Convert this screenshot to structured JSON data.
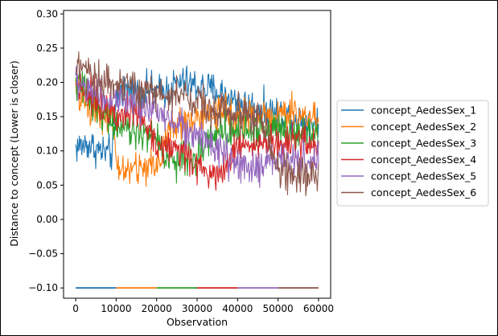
{
  "chart_data": {
    "type": "line",
    "title": "",
    "xlabel": "Observation",
    "ylabel": "Distance to concept (Lower is closer)",
    "xlim": [
      -3000,
      63000
    ],
    "ylim": [
      -0.115,
      0.305
    ],
    "xticks": [
      0,
      10000,
      20000,
      30000,
      40000,
      50000,
      60000
    ],
    "xtick_labels": [
      "0",
      "10000",
      "20000",
      "30000",
      "40000",
      "50000",
      "60000"
    ],
    "yticks": [
      0.3,
      0.25,
      0.2,
      0.15,
      0.1,
      0.05,
      0.0,
      -0.05,
      -0.1
    ],
    "ytick_labels": [
      "0.30",
      "0.25",
      "0.20",
      "0.15",
      "0.10",
      "0.05",
      "0.00",
      "−0.05",
      "−0.10"
    ],
    "grid": false,
    "legend_position": "right, outside plot",
    "baseline": {
      "y": -0.1,
      "segments": [
        {
          "series": 0,
          "x": [
            0,
            10000
          ]
        },
        {
          "series": 1,
          "x": [
            10000,
            20000
          ]
        },
        {
          "series": 2,
          "x": [
            20000,
            30000
          ]
        },
        {
          "series": 3,
          "x": [
            30000,
            40000
          ]
        },
        {
          "series": 4,
          "x": [
            40000,
            50000
          ]
        },
        {
          "series": 5,
          "x": [
            50000,
            60000
          ]
        }
      ]
    },
    "series": [
      {
        "name": "concept_AedesSex_1",
        "color": "#1f77b4",
        "x": [
          0,
          3000,
          6000,
          9000,
          10000,
          12000,
          15000,
          18000,
          20000,
          23000,
          26000,
          30000,
          33000,
          36000,
          40000,
          43000,
          46000,
          50000,
          53000,
          56000,
          60000
        ],
        "y": [
          0.105,
          0.11,
          0.1,
          0.095,
          0.18,
          0.19,
          0.185,
          0.19,
          0.185,
          0.19,
          0.2,
          0.195,
          0.19,
          0.185,
          0.17,
          0.165,
          0.16,
          0.155,
          0.15,
          0.145,
          0.14
        ],
        "noise": 0.022
      },
      {
        "name": "concept_AedesSex_2",
        "color": "#ff7f0e",
        "x": [
          0,
          3000,
          6000,
          9000,
          10000,
          13000,
          16000,
          20000,
          23000,
          26000,
          30000,
          33000,
          36000,
          40000,
          43000,
          46000,
          50000,
          53000,
          56000,
          60000
        ],
        "y": [
          0.185,
          0.165,
          0.155,
          0.15,
          0.075,
          0.072,
          0.075,
          0.08,
          0.13,
          0.14,
          0.15,
          0.15,
          0.155,
          0.155,
          0.15,
          0.15,
          0.15,
          0.155,
          0.15,
          0.15
        ],
        "noise": 0.022
      },
      {
        "name": "concept_AedesSex_3",
        "color": "#2ca02c",
        "x": [
          0,
          3000,
          6000,
          10000,
          13000,
          16000,
          20000,
          23000,
          26000,
          30000,
          33000,
          36000,
          40000,
          43000,
          46000,
          50000,
          53000,
          56000,
          60000
        ],
        "y": [
          0.2,
          0.185,
          0.16,
          0.135,
          0.13,
          0.125,
          0.12,
          0.085,
          0.085,
          0.09,
          0.12,
          0.13,
          0.13,
          0.13,
          0.13,
          0.135,
          0.13,
          0.13,
          0.13
        ],
        "noise": 0.022
      },
      {
        "name": "concept_AedesSex_4",
        "color": "#d62728",
        "x": [
          0,
          3000,
          6000,
          10000,
          13000,
          16000,
          20000,
          23000,
          26000,
          30000,
          33000,
          36000,
          40000,
          43000,
          46000,
          50000,
          53000,
          56000,
          60000
        ],
        "y": [
          0.2,
          0.185,
          0.17,
          0.16,
          0.155,
          0.15,
          0.11,
          0.105,
          0.105,
          0.075,
          0.07,
          0.07,
          0.11,
          0.11,
          0.11,
          0.11,
          0.11,
          0.11,
          0.11
        ],
        "noise": 0.022
      },
      {
        "name": "concept_AedesSex_5",
        "color": "#9467bd",
        "x": [
          0,
          3000,
          6000,
          10000,
          13000,
          16000,
          20000,
          23000,
          26000,
          30000,
          33000,
          36000,
          40000,
          43000,
          46000,
          50000,
          53000,
          56000,
          60000
        ],
        "y": [
          0.2,
          0.19,
          0.18,
          0.175,
          0.17,
          0.165,
          0.155,
          0.15,
          0.14,
          0.12,
          0.11,
          0.1,
          0.075,
          0.072,
          0.075,
          0.09,
          0.09,
          0.085,
          0.085
        ],
        "noise": 0.022
      },
      {
        "name": "concept_AedesSex_6",
        "color": "#8c564b",
        "x": [
          0,
          3000,
          6000,
          10000,
          13000,
          16000,
          20000,
          23000,
          26000,
          30000,
          33000,
          36000,
          40000,
          43000,
          46000,
          50000,
          53000,
          56000,
          60000
        ],
        "y": [
          0.22,
          0.21,
          0.205,
          0.2,
          0.195,
          0.19,
          0.185,
          0.18,
          0.18,
          0.17,
          0.165,
          0.16,
          0.155,
          0.15,
          0.145,
          0.07,
          0.065,
          0.065,
          0.065
        ],
        "noise": 0.024
      }
    ]
  }
}
